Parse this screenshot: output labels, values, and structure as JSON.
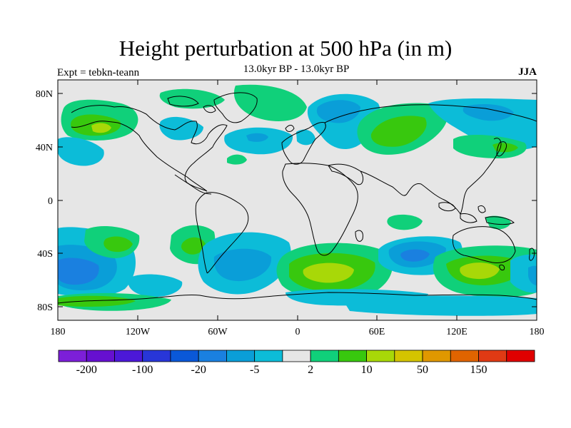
{
  "header": {
    "title": "Height perturbation at 500 hPa (in m)",
    "subtitle": "13.0kyr BP - 13.0kyr BP",
    "experiment": "Expt = tebkn-teann",
    "season": "JJA"
  },
  "axes": {
    "lat_labels": [
      "80N",
      "40N",
      "0",
      "40S",
      "80S"
    ],
    "lon_labels": [
      "180",
      "120W",
      "60W",
      "0",
      "60E",
      "120E",
      "180"
    ]
  },
  "colorbar": {
    "colors": [
      "#7c1fd8",
      "#6610d0",
      "#4c18d8",
      "#2836d8",
      "#0a58d8",
      "#1a80e0",
      "#0a9ed8",
      "#0cbcd8",
      "#e6e6e6",
      "#10d07a",
      "#38c80e",
      "#a8d808",
      "#d4c400",
      "#e09800",
      "#e06400",
      "#e03a14",
      "#e00000"
    ],
    "labels": [
      "-200",
      "-100",
      "-20",
      "-5",
      "2",
      "10",
      "50",
      "150"
    ]
  },
  "legend_meaning": {
    "blue_shades": "negative height perturbation",
    "gray": "near zero",
    "green_to_red": "positive height perturbation"
  }
}
